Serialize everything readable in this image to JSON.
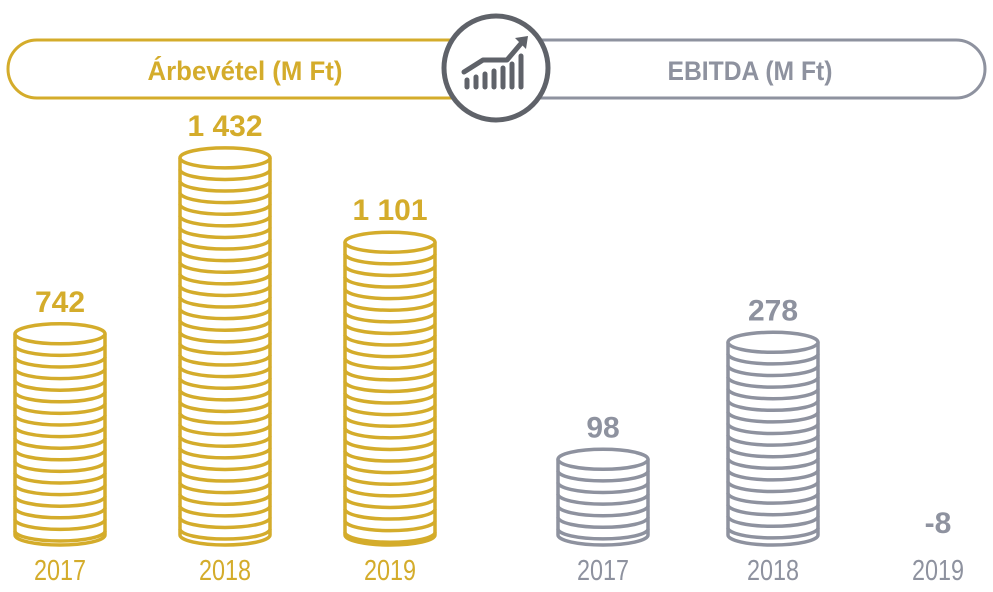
{
  "colors": {
    "revenue": "#d4ac2b",
    "ebitda": "#8e929f",
    "icon": "#5f6269"
  },
  "icon": "chart-growth-icon",
  "chart_data": [
    {
      "type": "bar",
      "title": "Árbevétel (M Ft)",
      "categories": [
        "2017",
        "2018",
        "2019"
      ],
      "values": [
        742,
        1432,
        1101
      ],
      "value_labels": [
        "742",
        "1 432",
        "1 101"
      ]
    },
    {
      "type": "bar",
      "title": "EBITDA (M Ft)",
      "categories": [
        "2017",
        "2018",
        "2019"
      ],
      "values": [
        98,
        278,
        -8
      ],
      "value_labels": [
        "98",
        "278",
        "-8"
      ]
    }
  ]
}
